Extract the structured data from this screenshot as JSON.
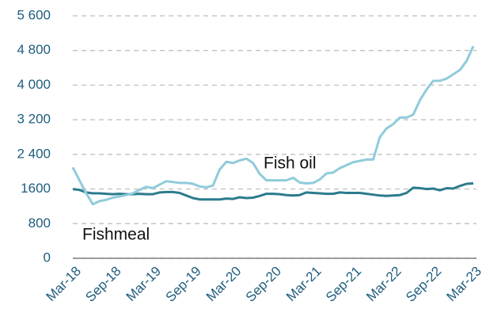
{
  "chart_data": {
    "type": "line",
    "categories": [
      "Mar-18",
      null,
      null,
      null,
      null,
      null,
      "Sep-18",
      null,
      null,
      null,
      null,
      null,
      "Mar-19",
      null,
      null,
      null,
      null,
      null,
      "Sep-19",
      null,
      null,
      null,
      null,
      null,
      "Mar-20",
      null,
      null,
      null,
      null,
      null,
      "Sep-20",
      null,
      null,
      null,
      null,
      null,
      "Mar-21",
      null,
      null,
      null,
      null,
      null,
      "Sep-21",
      null,
      null,
      null,
      null,
      null,
      "Mar-22",
      null,
      null,
      null,
      null,
      null,
      "Sep-22",
      null,
      null,
      null,
      null,
      null,
      "Mar-23"
    ],
    "series": [
      {
        "name": "Fish oil",
        "color": "#8fcbdb",
        "values": [
          2100,
          1800,
          1500,
          1250,
          1320,
          1350,
          1400,
          1430,
          1460,
          1500,
          1580,
          1650,
          1620,
          1700,
          1780,
          1760,
          1740,
          1740,
          1720,
          1660,
          1640,
          1680,
          2050,
          2230,
          2200,
          2260,
          2300,
          2200,
          1950,
          1800,
          1800,
          1800,
          1800,
          1860,
          1750,
          1730,
          1740,
          1820,
          1960,
          1980,
          2080,
          2150,
          2220,
          2250,
          2280,
          2280,
          2800,
          3000,
          3100,
          3250,
          3250,
          3320,
          3650,
          3900,
          4100,
          4100,
          4150,
          4250,
          4350,
          4560,
          4900
        ]
      },
      {
        "name": "Fishmeal",
        "color": "#2b7b8d",
        "values": [
          1600,
          1580,
          1520,
          1500,
          1500,
          1490,
          1480,
          1490,
          1480,
          1480,
          1490,
          1480,
          1480,
          1520,
          1530,
          1530,
          1510,
          1450,
          1390,
          1360,
          1360,
          1360,
          1360,
          1380,
          1370,
          1410,
          1390,
          1400,
          1440,
          1490,
          1490,
          1480,
          1460,
          1450,
          1460,
          1520,
          1510,
          1500,
          1490,
          1490,
          1520,
          1510,
          1510,
          1510,
          1490,
          1470,
          1450,
          1440,
          1450,
          1460,
          1510,
          1630,
          1620,
          1600,
          1610,
          1570,
          1620,
          1610,
          1670,
          1720,
          1730
        ]
      }
    ],
    "ylim": [
      0,
      5600
    ],
    "yticks": [
      0,
      800,
      1600,
      {
        "value": 2400,
        "label": "2 400"
      },
      {
        "value": 3200,
        "label": "3 200"
      },
      {
        "value": 4000,
        "label": "4 000"
      },
      {
        "value": 4800,
        "label": "4 800"
      },
      {
        "value": 5600,
        "label": "5 600"
      }
    ],
    "grid": true
  }
}
